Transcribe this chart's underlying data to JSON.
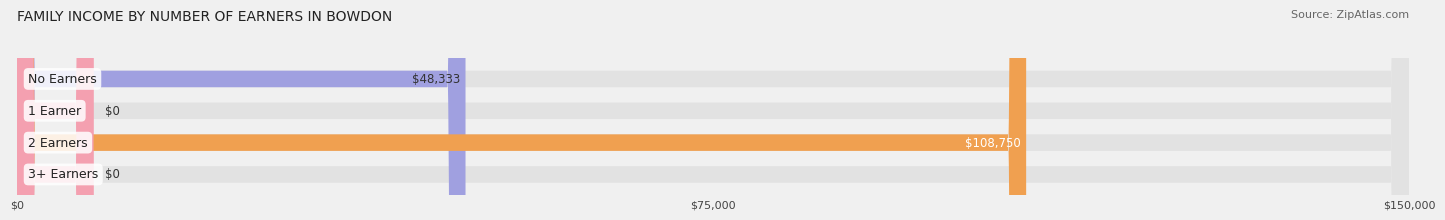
{
  "title": "FAMILY INCOME BY NUMBER OF EARNERS IN BOWDON",
  "source": "Source: ZipAtlas.com",
  "categories": [
    "No Earners",
    "1 Earner",
    "2 Earners",
    "3+ Earners"
  ],
  "values": [
    48333,
    0,
    108750,
    0
  ],
  "bar_colors": [
    "#a0a0e0",
    "#f4a0b0",
    "#f0a050",
    "#f4a0b0"
  ],
  "label_colors": [
    "#333333",
    "#333333",
    "#ffffff",
    "#333333"
  ],
  "value_labels": [
    "$48,333",
    "$0",
    "$108,750",
    "$0"
  ],
  "xlim": [
    0,
    150000
  ],
  "xtick_labels": [
    "$0",
    "$75,000",
    "$150,000"
  ],
  "background_color": "#f0f0f0",
  "bar_background_color": "#e2e2e2",
  "title_fontsize": 10,
  "source_fontsize": 8,
  "label_fontsize": 9,
  "value_fontsize": 8.5,
  "bar_height": 0.52,
  "figsize": [
    14.06,
    2.32
  ]
}
